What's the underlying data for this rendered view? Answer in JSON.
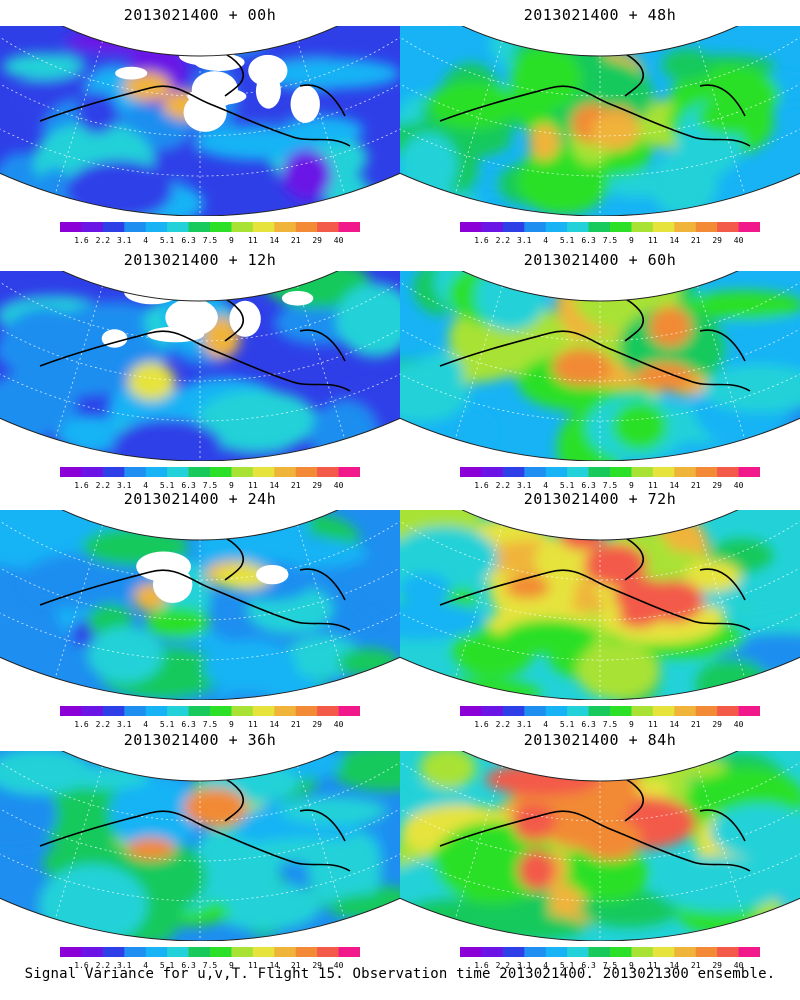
{
  "colorbar": {
    "labels": [
      "1.6",
      "2.2",
      "3.1",
      "4",
      "5.1",
      "6.3",
      "7.5",
      "9",
      "11",
      "14",
      "21",
      "29",
      "40"
    ],
    "colors": [
      "#8a00d6",
      "#6a14e6",
      "#2f3fe8",
      "#1e8ef0",
      "#17b3f5",
      "#22d2d8",
      "#18c95c",
      "#2be026",
      "#a8e234",
      "#e6e33c",
      "#f0b43a",
      "#f28a36",
      "#f35a4a",
      "#f0188a"
    ]
  },
  "panels": [
    {
      "title": "2013021400 + 00h",
      "level": 0
    },
    {
      "title": "2013021400 + 48h",
      "level": 4
    },
    {
      "title": "2013021400 + 12h",
      "level": 1
    },
    {
      "title": "2013021400 + 60h",
      "level": 5
    },
    {
      "title": "2013021400 + 24h",
      "level": 2
    },
    {
      "title": "2013021400 + 72h",
      "level": 6
    },
    {
      "title": "2013021400 + 36h",
      "level": 3
    },
    {
      "title": "2013021400 + 84h",
      "level": 7
    }
  ],
  "footer": "Signal Variance for u,v,T. Flight 15. Observation time 2013021400. 2013021300 ensemble."
}
